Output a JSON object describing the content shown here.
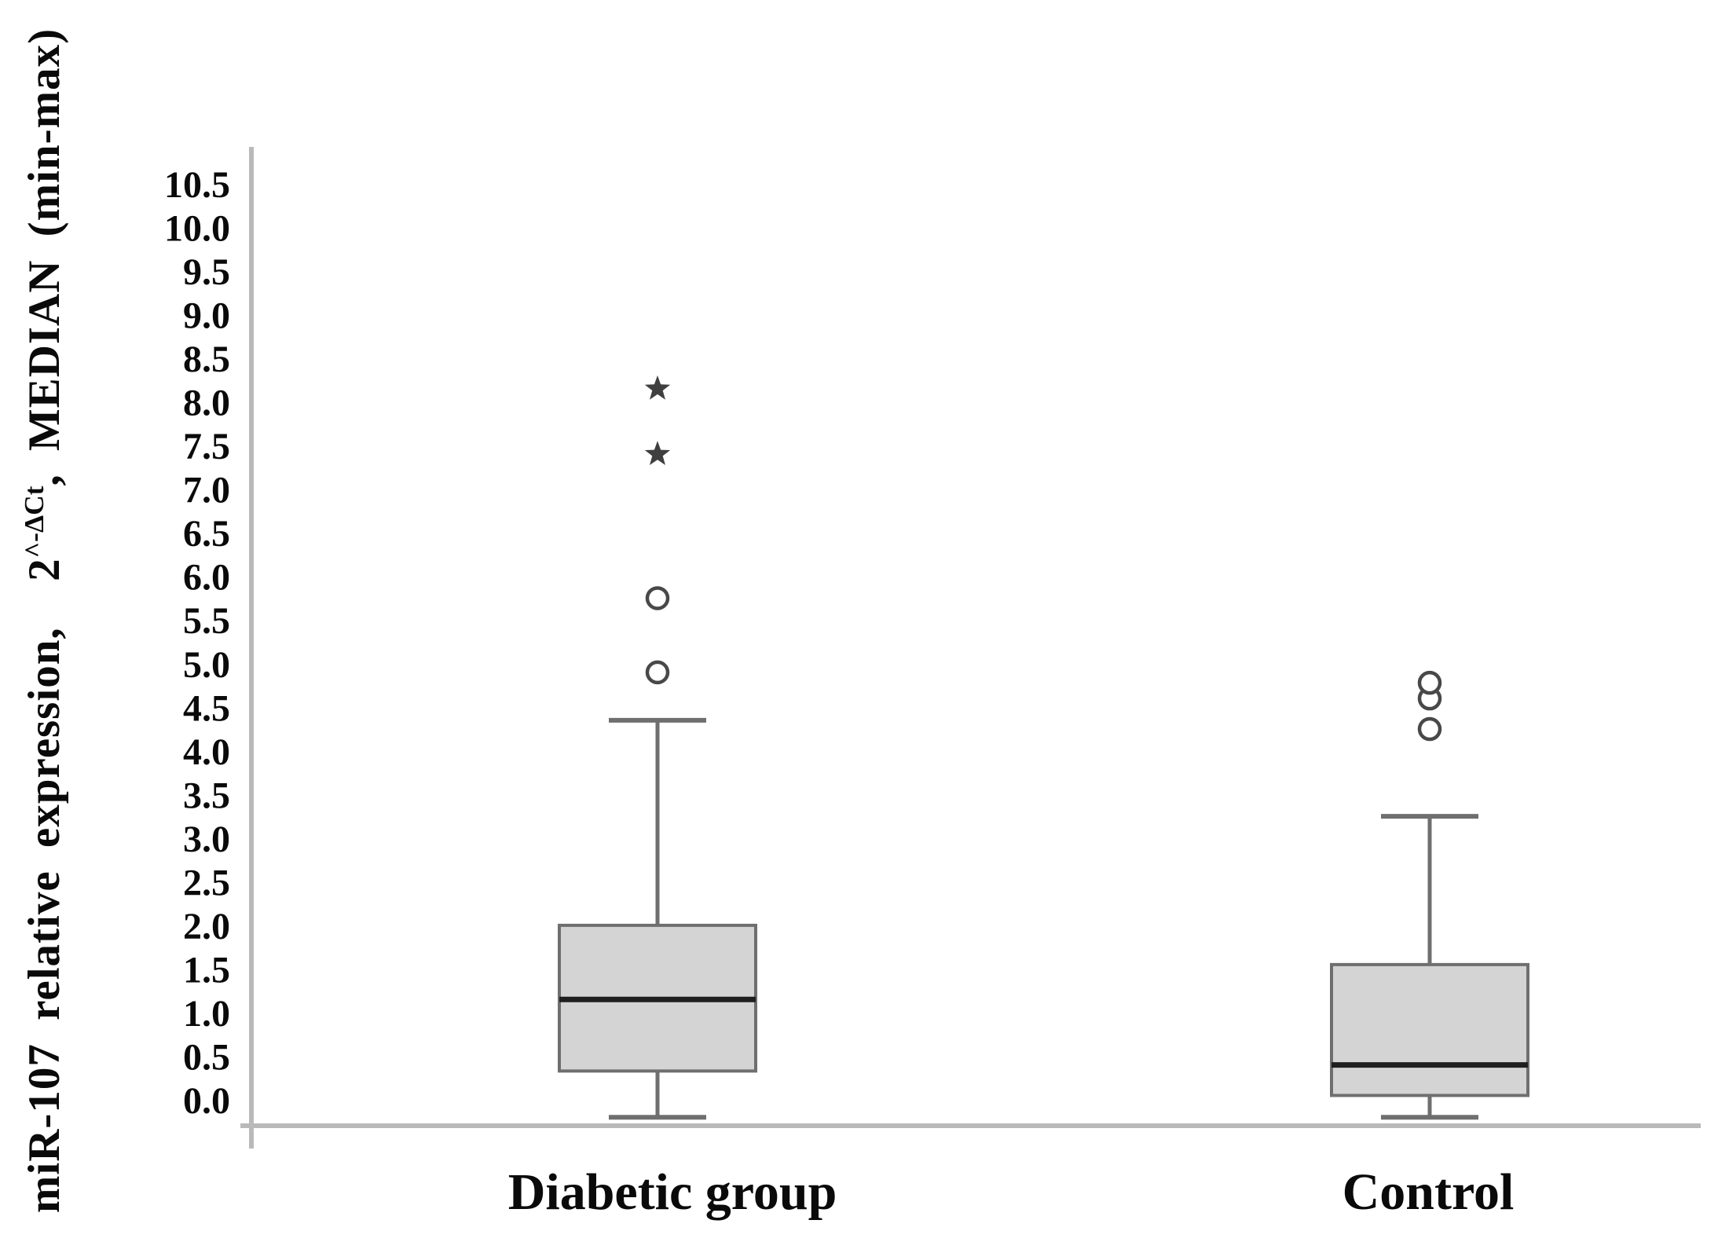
{
  "figure": {
    "y_axis_title": {
      "pre": "miR-107 relative expression,  2",
      "sup": "^-ΔCt",
      "post": ", MEDIAN (min-max)"
    }
  },
  "chart_data": {
    "type": "box",
    "title": "",
    "xlabel": "",
    "ylabel": "miR-107 relative expression, 2^-ΔCt, MEDIAN (min-max)",
    "ylim": [
      -0.3,
      10.9
    ],
    "ytick_step": 0.5,
    "yticks": [
      "10.5",
      "10.0",
      "9.5",
      "9.0",
      "8.5",
      "8.0",
      "7.5",
      "7.0",
      "6.5",
      "6.0",
      "5.5",
      "5.0",
      "4.5",
      "4.0",
      "3.5",
      "3.0",
      "2.5",
      "2.0",
      "1.5",
      "1.0",
      "0.5",
      "0.0"
    ],
    "grid": false,
    "legend": "none",
    "categories": [
      "Diabetic group",
      "Control"
    ],
    "series": [
      {
        "name": "Diabetic group",
        "q1": 0.33,
        "median": 1.15,
        "q3": 2.0,
        "whisker_low": -0.2,
        "whisker_high": 4.35,
        "outliers": [
          {
            "value": 4.9,
            "marker": "circle"
          },
          {
            "value": 5.75,
            "marker": "circle"
          },
          {
            "value": 7.4,
            "marker": "star"
          },
          {
            "value": 8.15,
            "marker": "star"
          }
        ]
      },
      {
        "name": "Control",
        "q1": 0.05,
        "median": 0.4,
        "q3": 1.55,
        "whisker_low": -0.2,
        "whisker_high": 3.25,
        "outliers": [
          {
            "value": 4.25,
            "marker": "circle"
          },
          {
            "value": 4.6,
            "marker": "circle"
          },
          {
            "value": 4.78,
            "marker": "circle"
          }
        ]
      }
    ],
    "colors": {
      "box_fill": "#d4d4d4",
      "box_border": "#6f6f6f",
      "median": "#1f1f1f",
      "whisker": "#6f6f6f",
      "axis": "#b9b9b9",
      "outlier_stroke": "#484848",
      "star_fill": "#3f3f3f",
      "text": "#0a0a0a"
    }
  }
}
